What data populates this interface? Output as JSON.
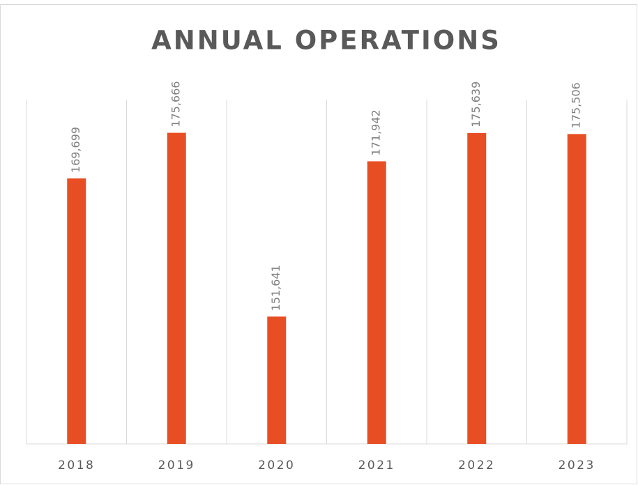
{
  "chart_data": {
    "type": "bar",
    "title": "ANNUAL OPERATIONS",
    "categories": [
      "2018",
      "2019",
      "2020",
      "2021",
      "2022",
      "2023"
    ],
    "values": [
      169699,
      175666,
      151641,
      171942,
      175639,
      175506
    ],
    "value_labels": [
      "169,699",
      "175,666",
      "151,641",
      "171,942",
      "175,639",
      "175,506"
    ],
    "color": "#e84e23",
    "ylim": [
      135000,
      180000
    ]
  }
}
